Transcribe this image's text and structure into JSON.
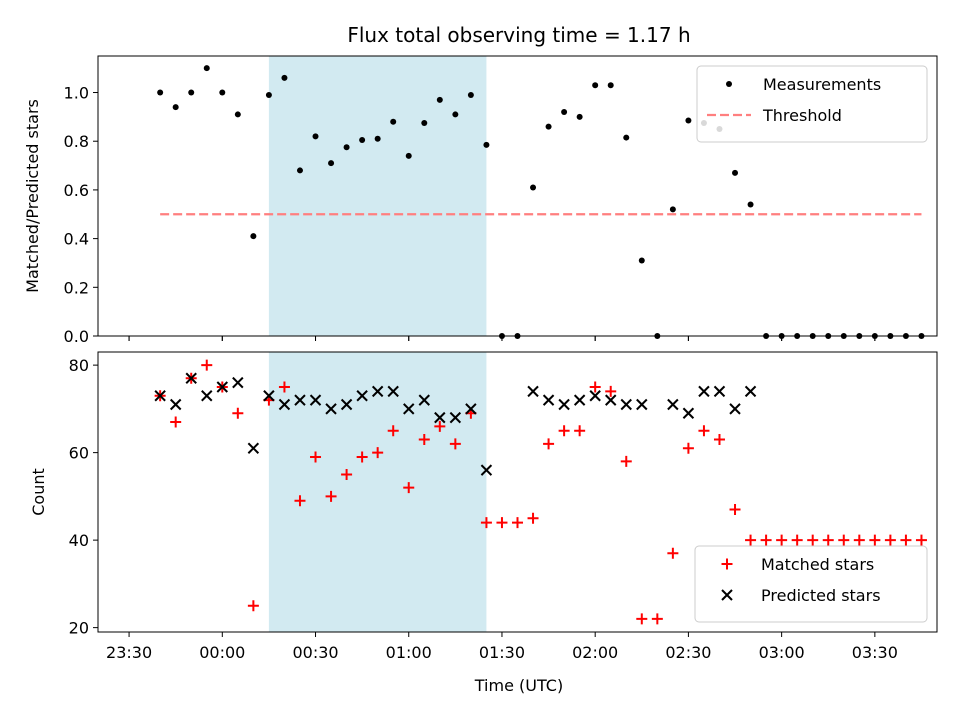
{
  "chart_data": {
    "title": "Flux total observing time = 1.17 h",
    "xlabel": "Time (UTC)",
    "x_tick_labels": [
      "23:30",
      "00:00",
      "00:30",
      "01:00",
      "01:30",
      "02:00",
      "02:30",
      "03:00",
      "03:30"
    ],
    "xlim": [
      "23:20",
      "03:50"
    ],
    "shaded_interval": {
      "start": "00:15",
      "end": "01:25",
      "color": "#add8e6"
    },
    "panels": [
      {
        "type": "scatter",
        "ylabel": "Matched/Predicted stars",
        "ylim": [
          0,
          1.15
        ],
        "y_ticks": [
          0.0,
          0.2,
          0.4,
          0.6,
          0.8,
          1.0
        ],
        "y_tick_labels": [
          "0.0",
          "0.2",
          "0.4",
          "0.6",
          "0.8",
          "1.0"
        ],
        "legend_position": "top-right",
        "series": [
          {
            "name": "Measurements",
            "marker": "dot",
            "color": "#000000",
            "points": [
              [
                "23:40",
                1.0
              ],
              [
                "23:45",
                0.94
              ],
              [
                "23:50",
                1.0
              ],
              [
                "23:55",
                1.1
              ],
              [
                "00:00",
                1.0
              ],
              [
                "00:05",
                0.91
              ],
              [
                "00:10",
                0.41
              ],
              [
                "00:15",
                0.99
              ],
              [
                "00:20",
                1.06
              ],
              [
                "00:25",
                0.68
              ],
              [
                "00:30",
                0.82
              ],
              [
                "00:35",
                0.71
              ],
              [
                "00:40",
                0.775
              ],
              [
                "00:45",
                0.805
              ],
              [
                "00:50",
                0.81
              ],
              [
                "00:55",
                0.88
              ],
              [
                "01:00",
                0.74
              ],
              [
                "01:05",
                0.875
              ],
              [
                "01:10",
                0.97
              ],
              [
                "01:15",
                0.91
              ],
              [
                "01:20",
                0.99
              ],
              [
                "01:25",
                0.785
              ],
              [
                "01:30",
                0.0
              ],
              [
                "01:35",
                0.0
              ],
              [
                "01:40",
                0.61
              ],
              [
                "01:45",
                0.86
              ],
              [
                "01:50",
                0.92
              ],
              [
                "01:55",
                0.9
              ],
              [
                "02:00",
                1.03
              ],
              [
                "02:05",
                1.03
              ],
              [
                "02:10",
                0.815
              ],
              [
                "02:15",
                0.31
              ],
              [
                "02:20",
                0.0
              ],
              [
                "02:25",
                0.52
              ],
              [
                "02:30",
                0.885
              ],
              [
                "02:35",
                0.875
              ],
              [
                "02:40",
                0.85
              ],
              [
                "02:45",
                0.67
              ],
              [
                "02:50",
                0.54
              ],
              [
                "02:55",
                0.0
              ],
              [
                "03:00",
                0.0
              ],
              [
                "03:05",
                0.0
              ],
              [
                "03:10",
                0.0
              ],
              [
                "03:15",
                0.0
              ],
              [
                "03:20",
                0.0
              ],
              [
                "03:25",
                0.0
              ],
              [
                "03:30",
                0.0
              ],
              [
                "03:35",
                0.0
              ],
              [
                "03:40",
                0.0
              ],
              [
                "03:45",
                0.0
              ]
            ]
          },
          {
            "name": "Threshold",
            "marker": "dashed-line",
            "color": "#ff7f7f",
            "points": [
              [
                "23:40",
                0.5
              ],
              [
                "03:45",
                0.5
              ]
            ]
          }
        ]
      },
      {
        "type": "scatter",
        "ylabel": "Count",
        "ylim": [
          19,
          83
        ],
        "y_ticks": [
          20,
          40,
          60,
          80
        ],
        "y_tick_labels": [
          "20",
          "40",
          "60",
          "80"
        ],
        "legend_position": "bottom-right",
        "series": [
          {
            "name": "Matched stars",
            "marker": "plus",
            "color": "#ff0000",
            "points": [
              [
                "23:40",
                73
              ],
              [
                "23:45",
                67
              ],
              [
                "23:50",
                77
              ],
              [
                "23:55",
                80
              ],
              [
                "00:00",
                75
              ],
              [
                "00:05",
                69
              ],
              [
                "00:10",
                25
              ],
              [
                "00:15",
                72
              ],
              [
                "00:20",
                75
              ],
              [
                "00:25",
                49
              ],
              [
                "00:30",
                59
              ],
              [
                "00:35",
                50
              ],
              [
                "00:40",
                55
              ],
              [
                "00:45",
                59
              ],
              [
                "00:50",
                60
              ],
              [
                "00:55",
                65
              ],
              [
                "01:00",
                52
              ],
              [
                "01:05",
                63
              ],
              [
                "01:10",
                66
              ],
              [
                "01:15",
                62
              ],
              [
                "01:20",
                69
              ],
              [
                "01:25",
                44
              ],
              [
                "01:30",
                44
              ],
              [
                "01:35",
                44
              ],
              [
                "01:40",
                45
              ],
              [
                "01:45",
                62
              ],
              [
                "01:50",
                65
              ],
              [
                "01:55",
                65
              ],
              [
                "02:00",
                75
              ],
              [
                "02:05",
                74
              ],
              [
                "02:10",
                58
              ],
              [
                "02:15",
                22
              ],
              [
                "02:20",
                22
              ],
              [
                "02:25",
                37
              ],
              [
                "02:30",
                61
              ],
              [
                "02:35",
                65
              ],
              [
                "02:40",
                63
              ],
              [
                "02:45",
                47
              ],
              [
                "02:50",
                40
              ],
              [
                "02:55",
                40
              ],
              [
                "03:00",
                40
              ],
              [
                "03:05",
                40
              ],
              [
                "03:10",
                40
              ],
              [
                "03:15",
                40
              ],
              [
                "03:20",
                40
              ],
              [
                "03:25",
                40
              ],
              [
                "03:30",
                40
              ],
              [
                "03:35",
                40
              ],
              [
                "03:40",
                40
              ],
              [
                "03:45",
                40
              ]
            ]
          },
          {
            "name": "Predicted stars",
            "marker": "x",
            "color": "#000000",
            "points": [
              [
                "23:40",
                73
              ],
              [
                "23:45",
                71
              ],
              [
                "23:50",
                77
              ],
              [
                "23:55",
                73
              ],
              [
                "00:00",
                75
              ],
              [
                "00:05",
                76
              ],
              [
                "00:10",
                61
              ],
              [
                "00:15",
                73
              ],
              [
                "00:20",
                71
              ],
              [
                "00:25",
                72
              ],
              [
                "00:30",
                72
              ],
              [
                "00:35",
                70
              ],
              [
                "00:40",
                71
              ],
              [
                "00:45",
                73
              ],
              [
                "00:50",
                74
              ],
              [
                "00:55",
                74
              ],
              [
                "01:00",
                70
              ],
              [
                "01:05",
                72
              ],
              [
                "01:10",
                68
              ],
              [
                "01:15",
                68
              ],
              [
                "01:20",
                70
              ],
              [
                "01:25",
                56
              ],
              [
                "01:40",
                74
              ],
              [
                "01:45",
                72
              ],
              [
                "01:50",
                71
              ],
              [
                "01:55",
                72
              ],
              [
                "02:00",
                73
              ],
              [
                "02:05",
                72
              ],
              [
                "02:10",
                71
              ],
              [
                "02:15",
                71
              ],
              [
                "02:25",
                71
              ],
              [
                "02:30",
                69
              ],
              [
                "02:35",
                74
              ],
              [
                "02:40",
                74
              ],
              [
                "02:45",
                70
              ],
              [
                "02:50",
                74
              ]
            ]
          }
        ]
      }
    ]
  }
}
